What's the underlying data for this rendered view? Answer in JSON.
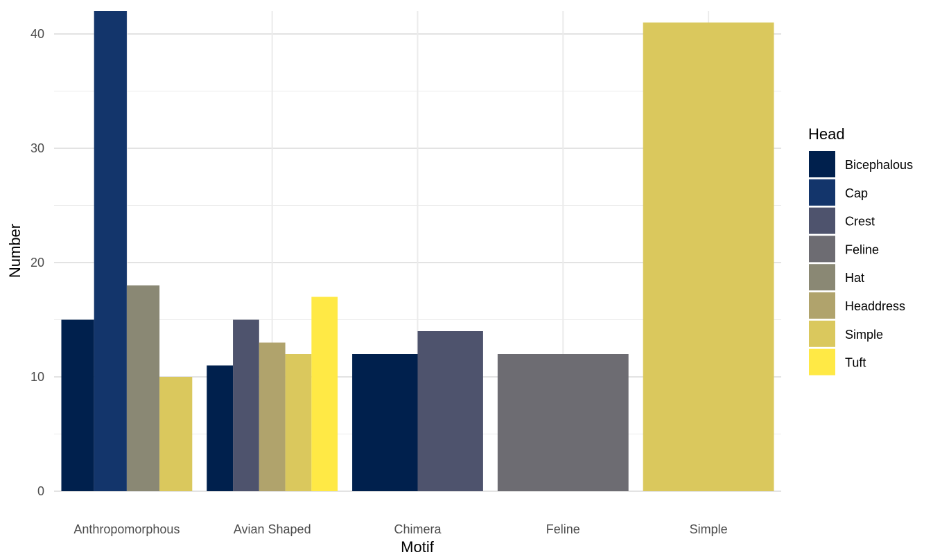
{
  "chart_data": {
    "type": "bar",
    "title": "",
    "xlabel": "Motif",
    "ylabel": "Number",
    "ylim": [
      0,
      42
    ],
    "yticks": [
      0,
      10,
      20,
      30,
      40
    ],
    "grid": true,
    "legend": {
      "title": "Head",
      "position": "right"
    },
    "categories": [
      "Anthropomorphous",
      "Avian Shaped",
      "Chimera",
      "Feline",
      "Simple"
    ],
    "series": [
      {
        "name": "Bicephalous",
        "color": "#00204D",
        "values": [
          15,
          11,
          12,
          null,
          null
        ]
      },
      {
        "name": "Cap",
        "color": "#13356B",
        "values": [
          42,
          null,
          null,
          null,
          null
        ]
      },
      {
        "name": "Crest",
        "color": "#4E536D",
        "values": [
          null,
          15,
          14,
          null,
          null
        ]
      },
      {
        "name": "Feline",
        "color": "#6D6C72",
        "values": [
          null,
          null,
          null,
          12,
          null
        ]
      },
      {
        "name": "Hat",
        "color": "#8A8874",
        "values": [
          18,
          null,
          null,
          null,
          null
        ]
      },
      {
        "name": "Headdress",
        "color": "#B0A36C",
        "values": [
          null,
          13,
          null,
          null,
          null
        ]
      },
      {
        "name": "Simple",
        "color": "#DAC85D",
        "values": [
          10,
          12,
          null,
          null,
          41
        ]
      },
      {
        "name": "Tuft",
        "color": "#FFE945",
        "values": [
          null,
          17,
          null,
          null,
          null
        ]
      }
    ]
  }
}
